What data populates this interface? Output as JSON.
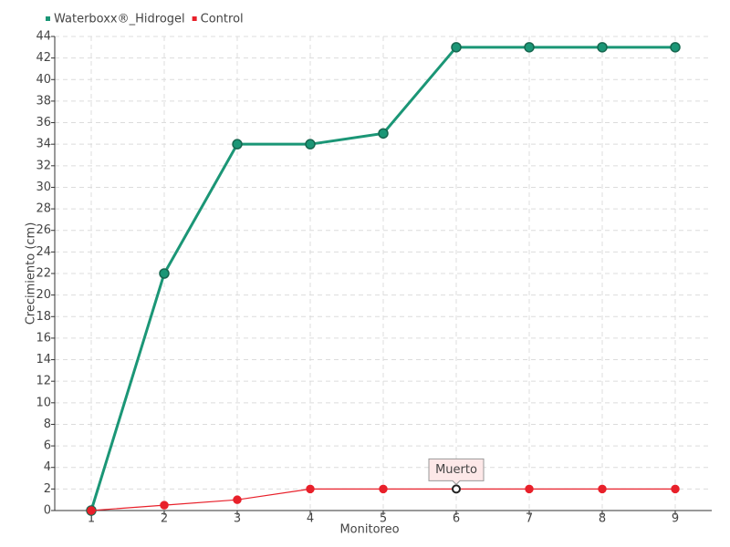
{
  "chart_data": {
    "type": "line",
    "x_label": "Monitoreo",
    "y_label": "Crecimiento (cm)",
    "categories": [
      "1",
      "2",
      "3",
      "4",
      "5",
      "6",
      "7",
      "8",
      "9"
    ],
    "series": [
      {
        "name": "Waterboxx®_Hidrogel",
        "color": "#1b9676",
        "values": [
          0,
          22,
          34,
          34,
          35,
          43,
          43,
          43,
          43
        ]
      },
      {
        "name": "Control",
        "color": "#e8202a",
        "values": [
          0,
          0.5,
          1,
          2,
          2,
          2,
          2,
          2,
          2
        ]
      }
    ],
    "annotations": [
      {
        "text": "Muerto",
        "series": "Control",
        "x": "6"
      }
    ],
    "ylim": [
      0,
      44
    ],
    "yticks": [
      0,
      2,
      4,
      6,
      8,
      10,
      12,
      14,
      16,
      18,
      20,
      22,
      24,
      26,
      28,
      30,
      32,
      34,
      36,
      38,
      40,
      42,
      44
    ],
    "grid": true,
    "legend": "top-left"
  }
}
